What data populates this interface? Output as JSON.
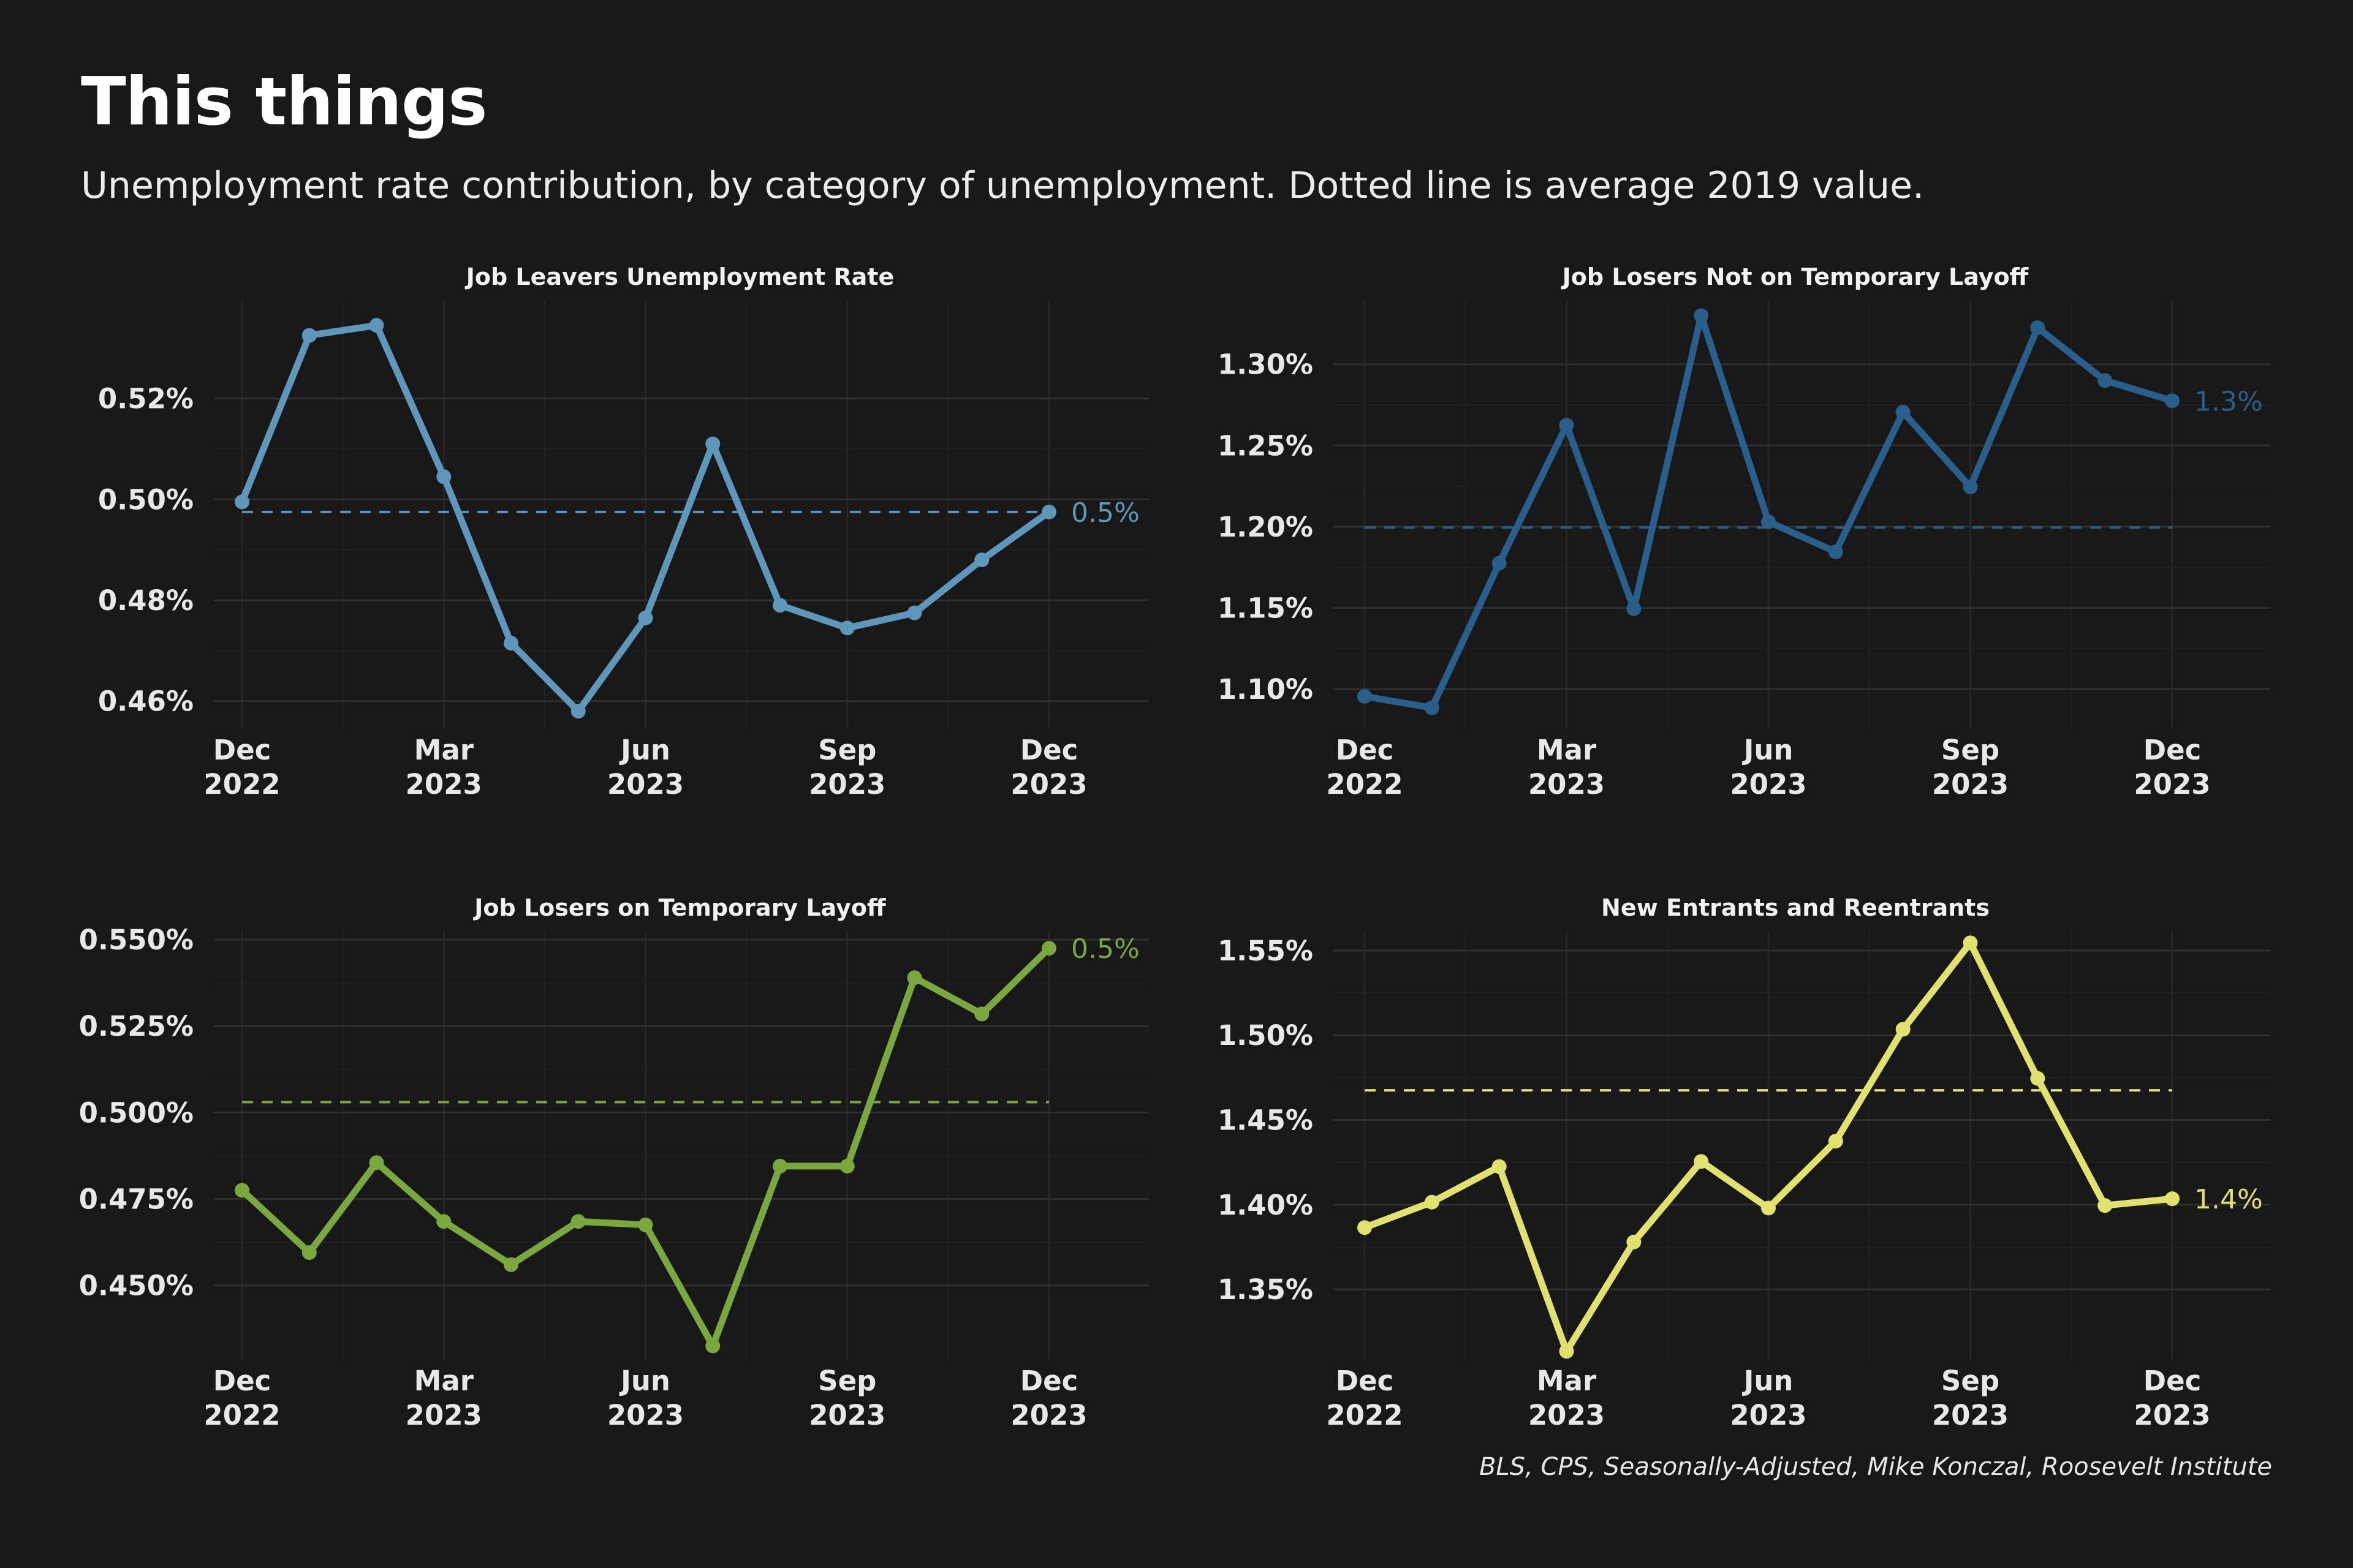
{
  "header": {
    "title": "This things",
    "subtitle": "Unemployment rate contribution, by category of unemployment. Dotted line is average 2019 value."
  },
  "caption": "BLS, CPS, Seasonally-Adjusted, Mike Konczal, Roosevelt Institute",
  "chart_data": [
    {
      "type": "line",
      "title": "Job Leavers Unemployment Rate",
      "color": "#5f97bb",
      "x": [
        "2022-12",
        "2023-01",
        "2023-02",
        "2023-03",
        "2023-04",
        "2023-05",
        "2023-06",
        "2023-07",
        "2023-08",
        "2023-09",
        "2023-10",
        "2023-11",
        "2023-12"
      ],
      "values": [
        0.4995,
        0.5325,
        0.5345,
        0.5045,
        0.4715,
        0.458,
        0.4765,
        0.511,
        0.479,
        0.4745,
        0.4775,
        0.488,
        0.4975
      ],
      "reference_value": 0.4975,
      "end_label": "0.5%",
      "ylim": [
        0.4545,
        0.5395
      ],
      "yticks": [
        0.46,
        0.48,
        0.5,
        0.52
      ],
      "ytick_labels": [
        "0.46%",
        "0.48%",
        "0.50%",
        "0.52%"
      ],
      "xticks": [
        {
          "month": "Dec",
          "year": "2022",
          "index": 0
        },
        {
          "month": "Mar",
          "year": "2023",
          "index": 3
        },
        {
          "month": "Jun",
          "year": "2023",
          "index": 6
        },
        {
          "month": "Sep",
          "year": "2023",
          "index": 9
        },
        {
          "month": "Dec",
          "year": "2023",
          "index": 12
        }
      ]
    },
    {
      "type": "line",
      "title": "Job Losers Not on Temporary Layoff",
      "color": "#2a5f8c",
      "x": [
        "2022-12",
        "2023-01",
        "2023-02",
        "2023-03",
        "2023-04",
        "2023-05",
        "2023-06",
        "2023-07",
        "2023-08",
        "2023-09",
        "2023-10",
        "2023-11",
        "2023-12"
      ],
      "values": [
        1.0955,
        1.0885,
        1.1775,
        1.2625,
        1.1495,
        1.33,
        1.203,
        1.1845,
        1.2705,
        1.2245,
        1.3225,
        1.29,
        1.2775
      ],
      "reference_value": 1.1995,
      "end_label": "1.3%",
      "ylim": [
        1.0755,
        1.3395
      ],
      "yticks": [
        1.1,
        1.15,
        1.2,
        1.25,
        1.3
      ],
      "ytick_labels": [
        "1.10%",
        "1.15%",
        "1.20%",
        "1.25%",
        "1.30%"
      ],
      "xticks": [
        {
          "month": "Dec",
          "year": "2022",
          "index": 0
        },
        {
          "month": "Mar",
          "year": "2023",
          "index": 3
        },
        {
          "month": "Jun",
          "year": "2023",
          "index": 6
        },
        {
          "month": "Sep",
          "year": "2023",
          "index": 9
        },
        {
          "month": "Dec",
          "year": "2023",
          "index": 12
        }
      ]
    },
    {
      "type": "line",
      "title": "Job Losers on Temporary Layoff",
      "color": "#7aa83f",
      "x": [
        "2022-12",
        "2023-01",
        "2023-02",
        "2023-03",
        "2023-04",
        "2023-05",
        "2023-06",
        "2023-07",
        "2023-08",
        "2023-09",
        "2023-10",
        "2023-11",
        "2023-12"
      ],
      "values": [
        0.4775,
        0.4595,
        0.4855,
        0.4685,
        0.456,
        0.4685,
        0.4675,
        0.4325,
        0.4845,
        0.4845,
        0.539,
        0.5285,
        0.5475
      ],
      "reference_value": 0.503,
      "end_label": "0.5%",
      "ylim": [
        0.4285,
        0.5525
      ],
      "yticks": [
        0.45,
        0.475,
        0.5,
        0.525,
        0.55
      ],
      "ytick_labels": [
        "0.450%",
        "0.475%",
        "0.500%",
        "0.525%",
        "0.550%"
      ],
      "xticks": [
        {
          "month": "Dec",
          "year": "2022",
          "index": 0
        },
        {
          "month": "Mar",
          "year": "2023",
          "index": 3
        },
        {
          "month": "Jun",
          "year": "2023",
          "index": 6
        },
        {
          "month": "Sep",
          "year": "2023",
          "index": 9
        },
        {
          "month": "Dec",
          "year": "2023",
          "index": 12
        }
      ]
    },
    {
      "type": "line",
      "title": "New Entrants and Reentrants",
      "color": "#e1e26d",
      "x": [
        "2022-12",
        "2023-01",
        "2023-02",
        "2023-03",
        "2023-04",
        "2023-05",
        "2023-06",
        "2023-07",
        "2023-08",
        "2023-09",
        "2023-10",
        "2023-11",
        "2023-12"
      ],
      "values": [
        1.3865,
        1.4015,
        1.4225,
        1.3135,
        1.378,
        1.4255,
        1.398,
        1.4375,
        1.5035,
        1.5545,
        1.4745,
        1.3995,
        1.4035
      ],
      "reference_value": 1.4675,
      "end_label": "1.4%",
      "ylim": [
        1.3085,
        1.5615
      ],
      "yticks": [
        1.35,
        1.4,
        1.45,
        1.5,
        1.55
      ],
      "ytick_labels": [
        "1.35%",
        "1.40%",
        "1.45%",
        "1.50%",
        "1.55%"
      ],
      "xticks": [
        {
          "month": "Dec",
          "year": "2022",
          "index": 0
        },
        {
          "month": "Mar",
          "year": "2023",
          "index": 3
        },
        {
          "month": "Jun",
          "year": "2023",
          "index": 6
        },
        {
          "month": "Sep",
          "year": "2023",
          "index": 9
        },
        {
          "month": "Dec",
          "year": "2023",
          "index": 12
        }
      ]
    }
  ]
}
